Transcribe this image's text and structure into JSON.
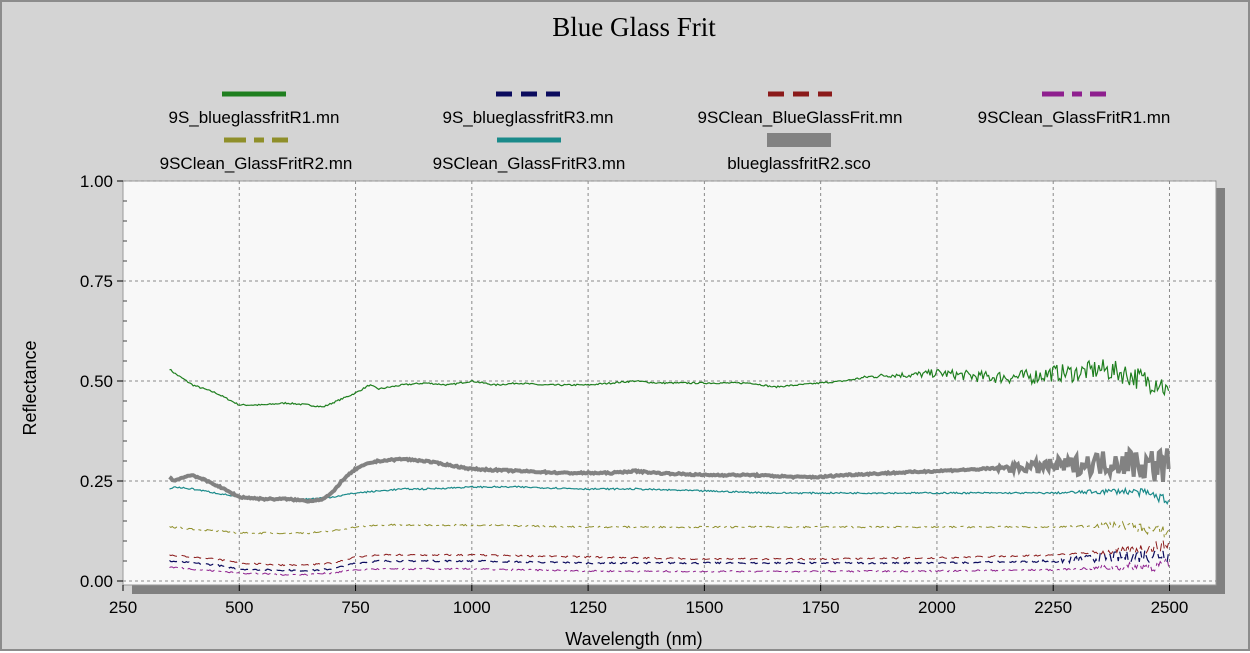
{
  "chart_data": {
    "type": "line",
    "title": "Blue Glass Frit",
    "xlabel": "Wavelength",
    "xlabel_unit": "(nm)",
    "ylabel": "Reflectance",
    "xlim": [
      250,
      2600
    ],
    "ylim": [
      -0.01,
      1.0
    ],
    "x_ticks": [
      250,
      500,
      750,
      1000,
      1250,
      1500,
      1750,
      2000,
      2250,
      2500
    ],
    "y_ticks": [
      {
        "value": 0.0,
        "label": "0.00"
      },
      {
        "value": 0.25,
        "label": "0.25"
      },
      {
        "value": 0.5,
        "label": "0.50"
      },
      {
        "value": 0.75,
        "label": "0.75"
      },
      {
        "value": 1.0,
        "label": "1.00"
      }
    ],
    "grid": true,
    "legend_position": "top",
    "series": [
      {
        "name": "9S_blueglassfritR1.mn",
        "color": "#1f7f1f",
        "style": "solid",
        "width": 1.2,
        "x": [
          350,
          360,
          400,
          450,
          500,
          550,
          600,
          650,
          680,
          700,
          720,
          750,
          780,
          800,
          850,
          900,
          950,
          1000,
          1050,
          1100,
          1150,
          1200,
          1250,
          1300,
          1350,
          1400,
          1450,
          1500,
          1550,
          1600,
          1650,
          1700,
          1750,
          1800,
          1850,
          1900,
          1950,
          2000,
          2050,
          2100,
          2150,
          2200,
          2250,
          2300,
          2350,
          2400,
          2450,
          2480,
          2500
        ],
        "y": [
          0.53,
          0.52,
          0.49,
          0.47,
          0.44,
          0.44,
          0.445,
          0.44,
          0.435,
          0.445,
          0.455,
          0.47,
          0.49,
          0.48,
          0.49,
          0.495,
          0.49,
          0.5,
          0.49,
          0.495,
          0.49,
          0.49,
          0.49,
          0.495,
          0.5,
          0.495,
          0.495,
          0.495,
          0.495,
          0.495,
          0.485,
          0.49,
          0.495,
          0.5,
          0.51,
          0.515,
          0.515,
          0.52,
          0.515,
          0.51,
          0.51,
          0.51,
          0.52,
          0.52,
          0.53,
          0.52,
          0.5,
          0.5,
          0.46
        ],
        "noise_start": 1800,
        "noise": 0.03
      },
      {
        "name": "9S_blueglassfritR3.mn",
        "color": "#0b0b5e",
        "style": "dash",
        "width": 1.2,
        "x": [
          350,
          400,
          450,
          500,
          550,
          600,
          650,
          700,
          750,
          800,
          900,
          1000,
          1250,
          1500,
          1750,
          2000,
          2250,
          2400,
          2500
        ],
        "y": [
          0.05,
          0.045,
          0.04,
          0.03,
          0.028,
          0.027,
          0.026,
          0.03,
          0.045,
          0.05,
          0.05,
          0.05,
          0.045,
          0.045,
          0.045,
          0.045,
          0.05,
          0.06,
          0.07
        ],
        "noise_start": 2200,
        "noise": 0.02
      },
      {
        "name": "9SClean_BlueGlassFrit.mn",
        "color": "#8b1a1a",
        "style": "dash",
        "width": 1,
        "x": [
          350,
          400,
          450,
          500,
          550,
          600,
          650,
          700,
          750,
          800,
          900,
          1000,
          1250,
          1500,
          1750,
          2000,
          2250,
          2400,
          2500
        ],
        "y": [
          0.065,
          0.06,
          0.055,
          0.045,
          0.042,
          0.04,
          0.04,
          0.045,
          0.06,
          0.065,
          0.065,
          0.065,
          0.06,
          0.055,
          0.055,
          0.058,
          0.065,
          0.075,
          0.09
        ],
        "noise_start": 2300,
        "noise": 0.015
      },
      {
        "name": "9SClean_GlassFritR1.mn",
        "color": "#8e1f8e",
        "style": "dashdot",
        "width": 1,
        "x": [
          350,
          400,
          450,
          500,
          550,
          600,
          650,
          700,
          750,
          800,
          900,
          1000,
          1250,
          1500,
          1750,
          2000,
          2250,
          2400,
          2500
        ],
        "y": [
          0.035,
          0.03,
          0.025,
          0.02,
          0.018,
          0.016,
          0.016,
          0.02,
          0.028,
          0.03,
          0.03,
          0.03,
          0.025,
          0.024,
          0.024,
          0.025,
          0.028,
          0.035,
          0.04
        ],
        "noise_start": 2300,
        "noise": 0.015
      },
      {
        "name": "9SClean_GlassFritR2.mn",
        "color": "#8f8f2a",
        "style": "dashdot",
        "width": 1,
        "x": [
          350,
          400,
          450,
          500,
          550,
          600,
          650,
          700,
          750,
          800,
          900,
          1000,
          1250,
          1500,
          1750,
          2000,
          2250,
          2400,
          2500
        ],
        "y": [
          0.135,
          0.13,
          0.125,
          0.12,
          0.12,
          0.12,
          0.12,
          0.125,
          0.135,
          0.14,
          0.14,
          0.14,
          0.135,
          0.135,
          0.135,
          0.135,
          0.135,
          0.14,
          0.12
        ],
        "noise_start": 2300,
        "noise": 0.015
      },
      {
        "name": "9SClean_GlassFritR3.mn",
        "color": "#1a8a8a",
        "style": "solid",
        "width": 1.2,
        "x": [
          350,
          360,
          400,
          450,
          500,
          550,
          600,
          650,
          700,
          750,
          800,
          850,
          900,
          1000,
          1100,
          1250,
          1350,
          1500,
          1650,
          1750,
          2000,
          2250,
          2400,
          2450,
          2500
        ],
        "y": [
          0.23,
          0.235,
          0.23,
          0.22,
          0.21,
          0.205,
          0.205,
          0.205,
          0.21,
          0.22,
          0.225,
          0.23,
          0.23,
          0.235,
          0.235,
          0.23,
          0.23,
          0.225,
          0.22,
          0.22,
          0.22,
          0.22,
          0.225,
          0.22,
          0.2
        ],
        "noise_start": 2250,
        "noise": 0.01
      },
      {
        "name": "blueglassfritR2.sco",
        "color": "#828282",
        "style": "solid",
        "width": 4,
        "x": [
          350,
          360,
          380,
          400,
          450,
          500,
          550,
          600,
          650,
          680,
          700,
          720,
          750,
          780,
          800,
          850,
          900,
          950,
          1000,
          1100,
          1200,
          1300,
          1350,
          1400,
          1500,
          1600,
          1700,
          1750,
          1800,
          1900,
          2000,
          2100,
          2200,
          2300,
          2400,
          2450,
          2500
        ],
        "y": [
          0.26,
          0.25,
          0.26,
          0.265,
          0.24,
          0.21,
          0.205,
          0.205,
          0.2,
          0.205,
          0.22,
          0.25,
          0.28,
          0.295,
          0.3,
          0.305,
          0.3,
          0.29,
          0.28,
          0.275,
          0.27,
          0.27,
          0.275,
          0.27,
          0.265,
          0.265,
          0.26,
          0.26,
          0.265,
          0.27,
          0.275,
          0.28,
          0.285,
          0.29,
          0.3,
          0.29,
          0.29
        ],
        "noise_start": 2100,
        "noise": 0.045
      }
    ]
  }
}
